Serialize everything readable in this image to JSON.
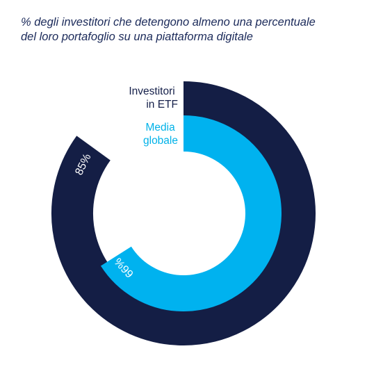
{
  "chart_data": {
    "type": "radial-bar",
    "title_lines": [
      "% degli investitori che detengono almeno una percentuale",
      "del loro portafoglio su una piattaforma digitale"
    ],
    "unit": "%",
    "series": [
      {
        "name_lines": [
          "Investitori",
          "in ETF"
        ],
        "value": 85,
        "label": "85%",
        "color": "#141e45"
      },
      {
        "name_lines": [
          "Media",
          "globale"
        ],
        "value": 66,
        "label": "66%",
        "color": "#00b2ef"
      }
    ],
    "max": 100
  }
}
